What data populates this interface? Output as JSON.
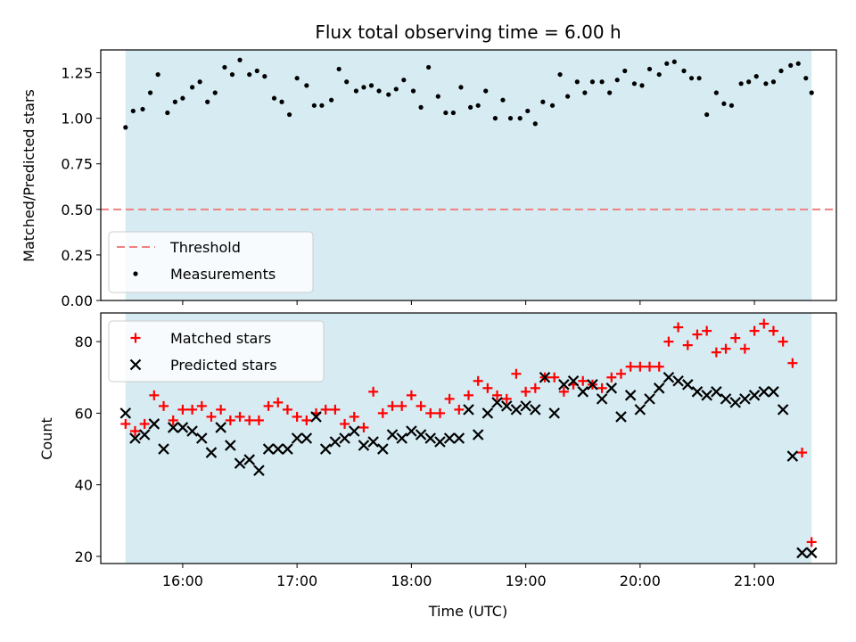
{
  "chart_data": [
    {
      "type": "scatter",
      "title": "Flux total observing time = 6.00 h",
      "xlabel": "",
      "ylabel": "Matched/Predicted stars",
      "ylim": [
        0,
        1.375
      ],
      "xlim": [
        "15:17",
        "21:43"
      ],
      "y_ticks": [
        "0.00",
        "0.25",
        "0.50",
        "0.75",
        "1.00",
        "1.25"
      ],
      "shaded_interval": [
        "15:30",
        "21:30"
      ],
      "shade_color": "#add8e6",
      "threshold": {
        "name": "Threshold",
        "value": 0.5,
        "color": "#f08080",
        "style": "dashed"
      },
      "legend": {
        "position": "lower-left",
        "entries": [
          "Threshold",
          "Measurements"
        ]
      },
      "series": [
        {
          "name": "Measurements",
          "marker": "dot",
          "color": "#000000",
          "x": [
            "15:30",
            "15:34",
            "15:39",
            "15:43",
            "15:47",
            "15:52",
            "15:56",
            "16:00",
            "16:05",
            "16:09",
            "16:13",
            "16:17",
            "16:22",
            "16:26",
            "16:30",
            "16:35",
            "16:39",
            "16:43",
            "16:48",
            "16:52",
            "16:56",
            "17:00",
            "17:05",
            "17:09",
            "17:13",
            "17:18",
            "17:22",
            "17:26",
            "17:31",
            "17:35",
            "17:39",
            "17:43",
            "17:48",
            "17:52",
            "17:56",
            "18:01",
            "18:05",
            "18:09",
            "18:14",
            "18:18",
            "18:22",
            "18:26",
            "18:31",
            "18:35",
            "18:39",
            "18:44",
            "18:48",
            "18:52",
            "18:57",
            "19:01",
            "19:05",
            "19:09",
            "19:14",
            "19:18",
            "19:22",
            "19:27",
            "19:31",
            "19:35",
            "19:40",
            "19:44",
            "19:48",
            "19:52",
            "19:57",
            "20:01",
            "20:05",
            "20:10",
            "20:14",
            "20:18",
            "20:23",
            "20:27",
            "20:31",
            "20:35",
            "20:40",
            "20:44",
            "20:48",
            "20:53",
            "20:57",
            "21:01",
            "21:06",
            "21:10",
            "21:14",
            "21:19",
            "21:23",
            "21:27",
            "21:30"
          ],
          "y": [
            0.95,
            1.04,
            1.05,
            1.14,
            1.24,
            1.03,
            1.09,
            1.11,
            1.17,
            1.2,
            1.09,
            1.14,
            1.28,
            1.24,
            1.32,
            1.24,
            1.26,
            1.23,
            1.11,
            1.09,
            1.02,
            1.22,
            1.18,
            1.07,
            1.07,
            1.1,
            1.27,
            1.2,
            1.15,
            1.17,
            1.18,
            1.15,
            1.13,
            1.16,
            1.21,
            1.15,
            1.06,
            1.28,
            1.12,
            1.03,
            1.03,
            1.17,
            1.06,
            1.07,
            1.15,
            1.0,
            1.1,
            1.0,
            1.0,
            1.04,
            0.97,
            1.09,
            1.07,
            1.24,
            1.12,
            1.2,
            1.14,
            1.2,
            1.2,
            1.14,
            1.21,
            1.26,
            1.19,
            1.18,
            1.27,
            1.24,
            1.3,
            1.31,
            1.26,
            1.22,
            1.22,
            1.02,
            1.14,
            1.08,
            1.07,
            1.19,
            1.2,
            1.23,
            1.19,
            1.2,
            1.26,
            1.29,
            1.3,
            1.22,
            1.14
          ]
        }
      ]
    },
    {
      "type": "scatter",
      "title": "",
      "xlabel": "Time (UTC)",
      "ylabel": "Count",
      "ylim": [
        18,
        88
      ],
      "xlim": [
        "15:17",
        "21:43"
      ],
      "x_ticks": [
        "16:00",
        "17:00",
        "18:00",
        "19:00",
        "20:00",
        "21:00"
      ],
      "y_ticks": [
        "20",
        "40",
        "60",
        "80"
      ],
      "shaded_interval": [
        "15:30",
        "21:30"
      ],
      "shade_color": "#add8e6",
      "legend": {
        "position": "upper-left",
        "entries": [
          "Matched stars",
          "Predicted stars"
        ]
      },
      "series": [
        {
          "name": "Matched stars",
          "marker": "plus",
          "color": "#ff0000",
          "x": [
            "15:30",
            "15:35",
            "15:40",
            "15:45",
            "15:50",
            "15:55",
            "16:00",
            "16:05",
            "16:10",
            "16:15",
            "16:20",
            "16:25",
            "16:30",
            "16:35",
            "16:40",
            "16:45",
            "16:50",
            "16:55",
            "17:00",
            "17:05",
            "17:10",
            "17:15",
            "17:20",
            "17:25",
            "17:30",
            "17:35",
            "17:40",
            "17:45",
            "17:50",
            "17:55",
            "18:00",
            "18:05",
            "18:10",
            "18:15",
            "18:20",
            "18:25",
            "18:30",
            "18:35",
            "18:40",
            "18:45",
            "18:50",
            "18:55",
            "19:00",
            "19:05",
            "19:10",
            "19:15",
            "19:20",
            "19:25",
            "19:30",
            "19:35",
            "19:40",
            "19:45",
            "19:50",
            "19:55",
            "20:00",
            "20:05",
            "20:10",
            "20:15",
            "20:20",
            "20:25",
            "20:30",
            "20:35",
            "20:40",
            "20:45",
            "20:50",
            "20:55",
            "21:00",
            "21:05",
            "21:10",
            "21:15",
            "21:20",
            "21:25",
            "21:30"
          ],
          "y": [
            57,
            55,
            57,
            65,
            62,
            58,
            61,
            61,
            62,
            59,
            61,
            58,
            59,
            58,
            58,
            62,
            63,
            61,
            59,
            58,
            60,
            61,
            61,
            57,
            59,
            56,
            66,
            60,
            62,
            62,
            65,
            62,
            60,
            60,
            64,
            61,
            65,
            69,
            67,
            65,
            64,
            71,
            66,
            67,
            70,
            70,
            66,
            68,
            69,
            68,
            67,
            70,
            71,
            73,
            73,
            73,
            73,
            80,
            84,
            79,
            82,
            83,
            77,
            78,
            81,
            78,
            83,
            85,
            83,
            80,
            74,
            49,
            24
          ]
        },
        {
          "name": "Predicted stars",
          "marker": "x",
          "color": "#000000",
          "x": [
            "15:30",
            "15:35",
            "15:40",
            "15:45",
            "15:50",
            "15:55",
            "16:00",
            "16:05",
            "16:10",
            "16:15",
            "16:20",
            "16:25",
            "16:30",
            "16:35",
            "16:40",
            "16:45",
            "16:50",
            "16:55",
            "17:00",
            "17:05",
            "17:10",
            "17:15",
            "17:20",
            "17:25",
            "17:30",
            "17:35",
            "17:40",
            "17:45",
            "17:50",
            "17:55",
            "18:00",
            "18:05",
            "18:10",
            "18:15",
            "18:20",
            "18:25",
            "18:30",
            "18:35",
            "18:40",
            "18:45",
            "18:50",
            "18:55",
            "19:00",
            "19:05",
            "19:10",
            "19:15",
            "19:20",
            "19:25",
            "19:30",
            "19:35",
            "19:40",
            "19:45",
            "19:50",
            "19:55",
            "20:00",
            "20:05",
            "20:10",
            "20:15",
            "20:20",
            "20:25",
            "20:30",
            "20:35",
            "20:40",
            "20:45",
            "20:50",
            "20:55",
            "21:00",
            "21:05",
            "21:10",
            "21:15",
            "21:20",
            "21:25",
            "21:30"
          ],
          "y": [
            60,
            53,
            54,
            57,
            50,
            56,
            56,
            55,
            53,
            49,
            56,
            51,
            46,
            47,
            44,
            50,
            50,
            50,
            53,
            53,
            59,
            50,
            52,
            53,
            55,
            51,
            52,
            50,
            54,
            53,
            55,
            54,
            53,
            52,
            53,
            53,
            61,
            54,
            60,
            63,
            62,
            61,
            62,
            61,
            70,
            60,
            68,
            69,
            66,
            68,
            64,
            67,
            59,
            65,
            61,
            64,
            67,
            70,
            69,
            68,
            66,
            65,
            66,
            64,
            63,
            64,
            65,
            66,
            66,
            61,
            48,
            21,
            21
          ]
        }
      ]
    }
  ]
}
